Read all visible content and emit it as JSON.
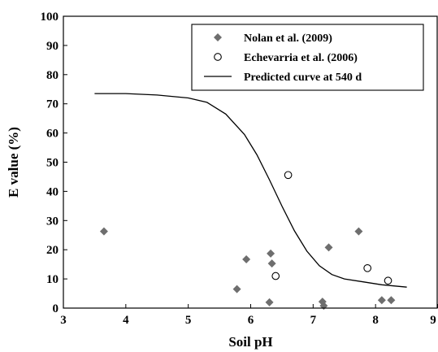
{
  "chart_data": {
    "type": "scatter",
    "xlabel": "Soil pH",
    "ylabel": "E value (%)",
    "xlim": [
      3,
      9
    ],
    "ylim": [
      0,
      100
    ],
    "x_ticks": [
      "3",
      "4",
      "5",
      "6",
      "7",
      "8",
      "9"
    ],
    "y_ticks": [
      "0",
      "10",
      "20",
      "30",
      "40",
      "50",
      "60",
      "70",
      "80",
      "90",
      "100"
    ],
    "grid": false,
    "legend_position": "top-right",
    "series": [
      {
        "name": "Nolan et al. (2009)",
        "marker": "filled-diamond",
        "color": "#6e6e6e",
        "points": [
          [
            3.65,
            26.3
          ],
          [
            5.78,
            6.5
          ],
          [
            5.93,
            16.7
          ],
          [
            6.3,
            2.0
          ],
          [
            6.32,
            18.7
          ],
          [
            6.34,
            15.3
          ],
          [
            7.15,
            2.2
          ],
          [
            7.17,
            0.8
          ],
          [
            7.25,
            20.8
          ],
          [
            7.73,
            26.3
          ],
          [
            8.1,
            2.7
          ],
          [
            8.25,
            2.7
          ]
        ]
      },
      {
        "name": "Echevarria et al. (2006)",
        "marker": "open-circle",
        "color": "#000000",
        "points": [
          [
            6.4,
            11.0
          ],
          [
            6.6,
            45.6
          ],
          [
            7.87,
            13.7
          ],
          [
            8.2,
            9.4
          ]
        ]
      },
      {
        "name": "Predicted curve at 540 d",
        "marker": "line",
        "color": "#000000",
        "points": [
          [
            3.5,
            73.5
          ],
          [
            4.0,
            73.5
          ],
          [
            4.5,
            73.0
          ],
          [
            5.0,
            72.0
          ],
          [
            5.3,
            70.5
          ],
          [
            5.6,
            66.5
          ],
          [
            5.9,
            59.5
          ],
          [
            6.1,
            52.5
          ],
          [
            6.3,
            44.0
          ],
          [
            6.5,
            35.0
          ],
          [
            6.7,
            26.5
          ],
          [
            6.9,
            19.5
          ],
          [
            7.1,
            14.5
          ],
          [
            7.3,
            11.5
          ],
          [
            7.5,
            10.0
          ],
          [
            7.8,
            9.0
          ],
          [
            8.1,
            8.0
          ],
          [
            8.5,
            7.2
          ]
        ]
      }
    ]
  }
}
